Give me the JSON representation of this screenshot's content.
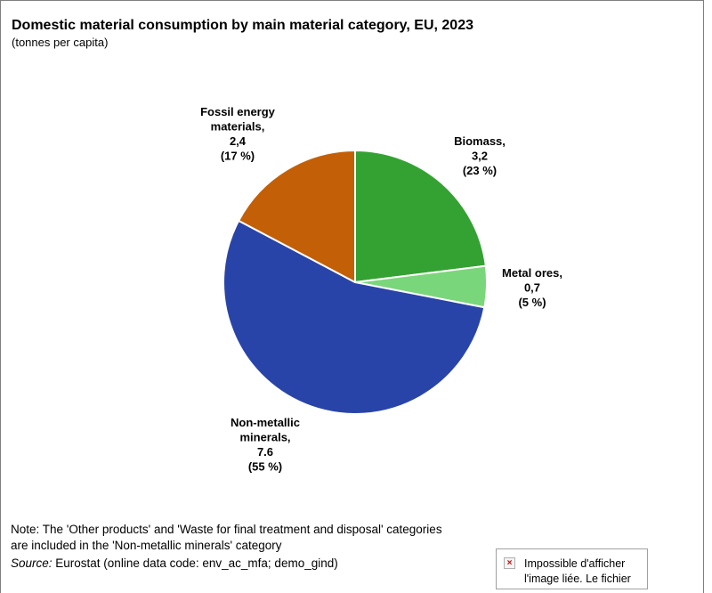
{
  "chart_data": {
    "type": "pie",
    "title": "Domestic material consumption by main material category, EU, 2023",
    "subtitle": "(tonnes per capita)",
    "slices": [
      {
        "name": "Biomass",
        "name_lines": [
          "Biomass,"
        ],
        "value": 3.2,
        "value_label": "3,2",
        "percent": 23,
        "percent_label": "(23 %)",
        "color": "#34a233"
      },
      {
        "name": "Metal ores",
        "name_lines": [
          "Metal ores,"
        ],
        "value": 0.7,
        "value_label": "0,7",
        "percent": 5,
        "percent_label": "(5 %)",
        "color": "#7ad67a"
      },
      {
        "name": "Non-metallic minerals",
        "name_lines": [
          "Non-metallic",
          "minerals,"
        ],
        "value": 7.6,
        "value_label": "7.6",
        "percent": 55,
        "percent_label": "(55 %)",
        "color": "#2944a8"
      },
      {
        "name": "Fossil energy materials",
        "name_lines": [
          "Fossil energy",
          "materials,"
        ],
        "value": 2.4,
        "value_label": "2,4",
        "percent": 17,
        "percent_label": "(17 %)",
        "color": "#c35f06"
      }
    ]
  },
  "footer": {
    "note": "Note: The 'Other products'  and 'Waste for final treatment and disposal' categories are included in the 'Non-metallic minerals' category",
    "source_label": "Source:",
    "source_text": " Eurostat (online data code:  env_ac_mfa; demo_gind)"
  },
  "broken_image": {
    "line1": "Impossible d'afficher",
    "line2": "l'image liée. Le fichier"
  }
}
